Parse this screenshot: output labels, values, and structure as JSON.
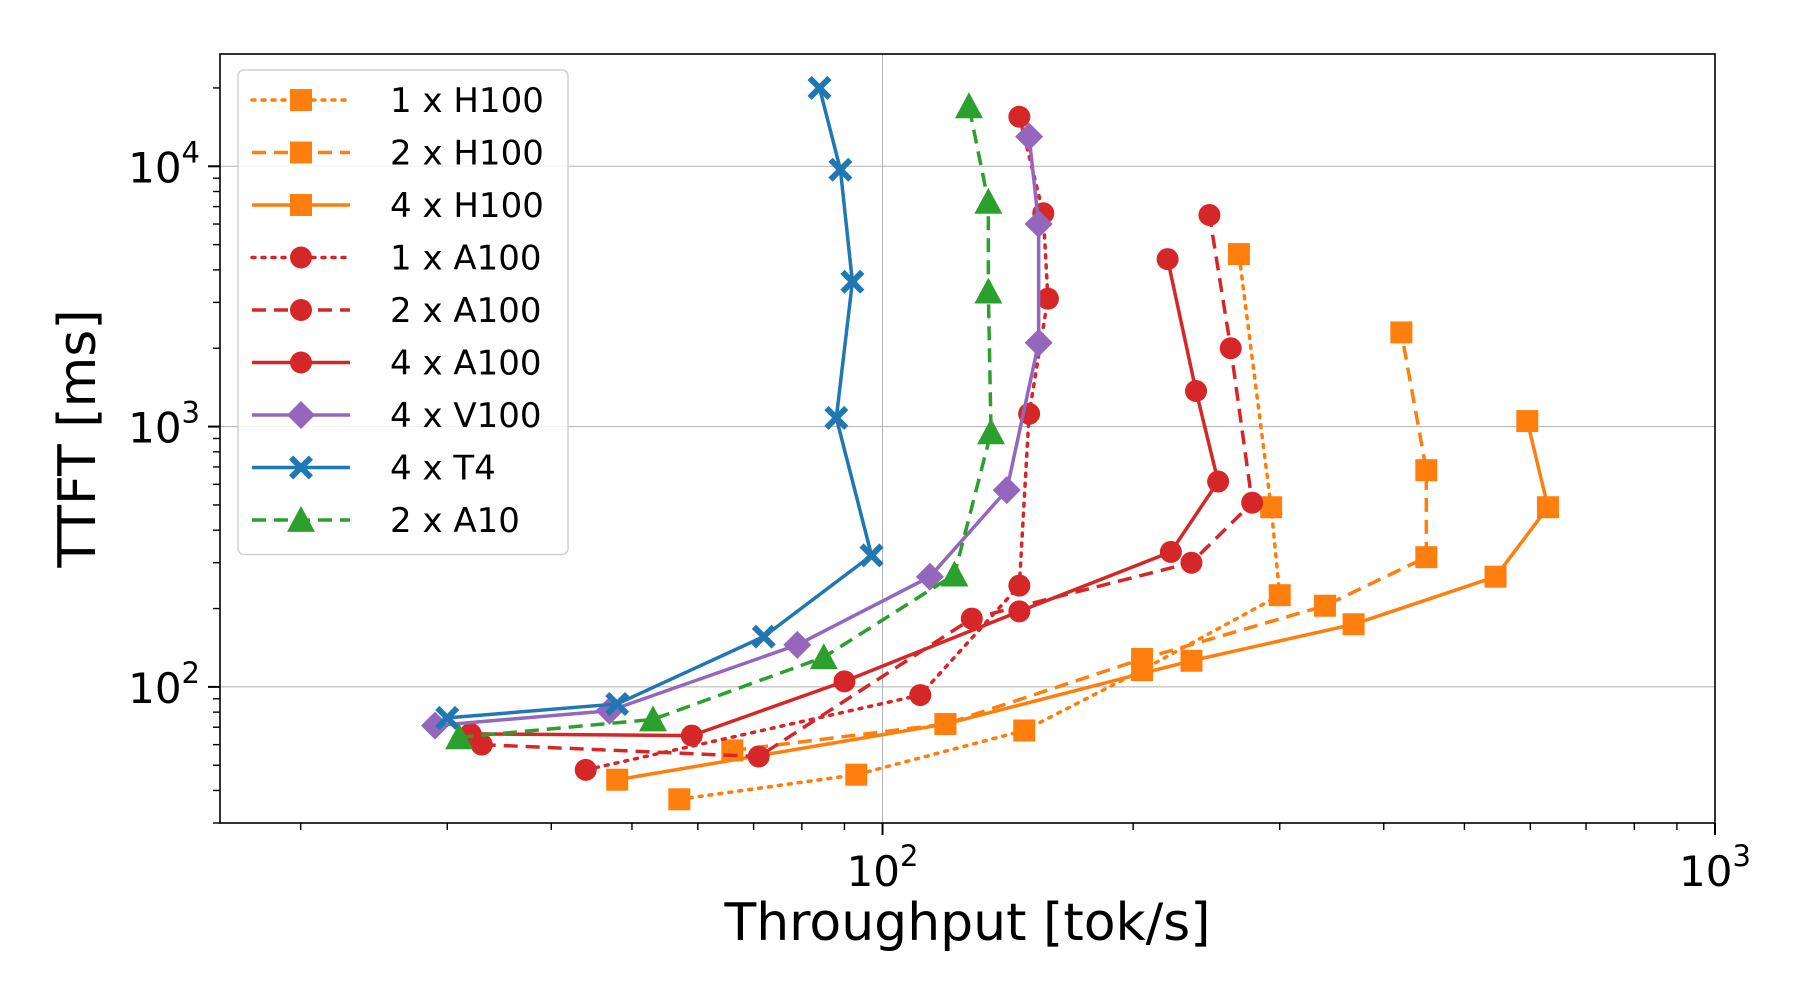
{
  "chart_data": {
    "type": "line",
    "title": "",
    "xlabel": "Throughput [tok/s]",
    "ylabel": "TTFT [ms]",
    "xscale": "log",
    "yscale": "log",
    "xlim": [
      16,
      1000
    ],
    "ylim": [
      30,
      27000
    ],
    "grid": "major",
    "legend_position": "top-left",
    "x_major_ticks": [
      {
        "value": 100,
        "base": "10",
        "exp": "2"
      },
      {
        "value": 1000,
        "base": "10",
        "exp": "3"
      }
    ],
    "y_major_ticks": [
      {
        "value": 100,
        "base": "10",
        "exp": "2"
      },
      {
        "value": 1000,
        "base": "10",
        "exp": "3"
      },
      {
        "value": 10000,
        "base": "10",
        "exp": "4"
      }
    ],
    "series": [
      {
        "name": "1 x H100",
        "color": "#ff7f0e",
        "dash": "dotted",
        "marker": "square",
        "points": [
          [
            57,
            37
          ],
          [
            93,
            46
          ],
          [
            148,
            68
          ],
          [
            205,
            116
          ],
          [
            300,
            225
          ],
          [
            293,
            490
          ],
          [
            268,
            4600
          ]
        ]
      },
      {
        "name": "2 x H100",
        "color": "#ff7f0e",
        "dash": "dashed",
        "marker": "square",
        "points": [
          [
            66,
            57
          ],
          [
            119,
            72
          ],
          [
            205,
            128
          ],
          [
            340,
            205
          ],
          [
            450,
            315
          ],
          [
            450,
            680
          ],
          [
            420,
            2300
          ]
        ]
      },
      {
        "name": "4 x H100",
        "color": "#ff7f0e",
        "dash": "solid",
        "marker": "square",
        "points": [
          [
            48,
            44
          ],
          [
            119,
            72
          ],
          [
            235,
            126
          ],
          [
            368,
            174
          ],
          [
            545,
            265
          ],
          [
            630,
            490
          ],
          [
            595,
            1050
          ]
        ]
      },
      {
        "name": "1 x A100",
        "color": "#d62728",
        "dash": "dotted",
        "marker": "circle",
        "points": [
          [
            44,
            48
          ],
          [
            111,
            93
          ],
          [
            146,
            245
          ],
          [
            150,
            1120
          ],
          [
            158,
            3100
          ],
          [
            156,
            6600
          ],
          [
            146,
            15500
          ]
        ]
      },
      {
        "name": "2 x A100",
        "color": "#d62728",
        "dash": "dashed",
        "marker": "circle",
        "points": [
          [
            33,
            60
          ],
          [
            71,
            54
          ],
          [
            128,
            183
          ],
          [
            235,
            300
          ],
          [
            278,
            510
          ],
          [
            262,
            2000
          ],
          [
            247,
            6500
          ]
        ]
      },
      {
        "name": "4 x A100",
        "color": "#d62728",
        "dash": "solid",
        "marker": "circle",
        "points": [
          [
            32,
            66
          ],
          [
            59,
            65
          ],
          [
            90,
            105
          ],
          [
            146,
            195
          ],
          [
            222,
            330
          ],
          [
            253,
            615
          ],
          [
            238,
            1370
          ],
          [
            220,
            4400
          ]
        ]
      },
      {
        "name": "4 x V100",
        "color": "#9467bd",
        "dash": "solid",
        "marker": "diamond",
        "points": [
          [
            29,
            71
          ],
          [
            47,
            81
          ],
          [
            79,
            145
          ],
          [
            114,
            265
          ],
          [
            141,
            570
          ],
          [
            154,
            2100
          ],
          [
            154,
            6000
          ],
          [
            150,
            13000
          ]
        ]
      },
      {
        "name": "4 x T4",
        "color": "#1f77b4",
        "dash": "solid",
        "marker": "x",
        "points": [
          [
            30,
            76
          ],
          [
            48,
            86
          ],
          [
            72,
            156
          ],
          [
            97,
            320
          ],
          [
            88,
            1080
          ],
          [
            92,
            3600
          ],
          [
            89,
            9700
          ],
          [
            84,
            20000
          ]
        ]
      },
      {
        "name": "2 x A10",
        "color": "#2ca02c",
        "dash": "dashed",
        "marker": "triangle",
        "points": [
          [
            31,
            64
          ],
          [
            53,
            75
          ],
          [
            85,
            130
          ],
          [
            122,
            270
          ],
          [
            135,
            950
          ],
          [
            134,
            3300
          ],
          [
            134,
            7300
          ],
          [
            127,
            17000
          ]
        ]
      }
    ]
  }
}
